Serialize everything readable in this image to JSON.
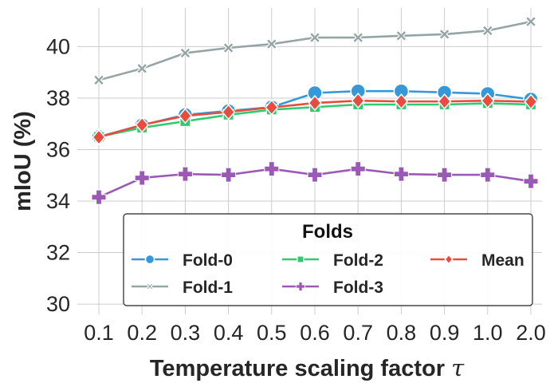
{
  "chart_data": {
    "type": "line",
    "title": "",
    "xlabel": "Temperature scaling factor",
    "xlabel_symbol": "τ",
    "ylabel": "mIoU (%)",
    "categories": [
      "0.1",
      "0.2",
      "0.3",
      "0.4",
      "0.5",
      "0.6",
      "0.7",
      "0.8",
      "0.9",
      "1.0",
      "2.0"
    ],
    "yticks": [
      "30",
      "32",
      "34",
      "36",
      "38",
      "40"
    ],
    "ylim": [
      29.6,
      41.5
    ],
    "grid": true,
    "legend": {
      "title": "Folds",
      "position": "lower-right",
      "columns": 3
    },
    "series": [
      {
        "name": "Fold-0",
        "color": "#3498db",
        "marker": "circle",
        "values": [
          36.5,
          36.95,
          37.35,
          37.5,
          37.65,
          38.2,
          38.27,
          38.27,
          38.22,
          38.17,
          37.95
        ]
      },
      {
        "name": "Fold-1",
        "color": "#95a5a6",
        "marker": "x",
        "values": [
          38.7,
          39.15,
          39.75,
          39.95,
          40.1,
          40.35,
          40.35,
          40.42,
          40.48,
          40.62,
          40.97
        ]
      },
      {
        "name": "Fold-2",
        "color": "#2ecc71",
        "marker": "square",
        "values": [
          36.5,
          36.85,
          37.1,
          37.35,
          37.55,
          37.65,
          37.75,
          37.75,
          37.75,
          37.8,
          37.75
        ]
      },
      {
        "name": "Fold-3",
        "color": "#9b59b6",
        "marker": "plus",
        "values": [
          34.15,
          34.9,
          35.05,
          35.02,
          35.25,
          35.02,
          35.25,
          35.05,
          35.02,
          35.02,
          34.77
        ]
      },
      {
        "name": "Mean",
        "color": "#e74c3c",
        "marker": "diamond",
        "values": [
          36.48,
          36.96,
          37.31,
          37.46,
          37.64,
          37.81,
          37.9,
          37.87,
          37.87,
          37.9,
          37.86
        ]
      }
    ]
  }
}
